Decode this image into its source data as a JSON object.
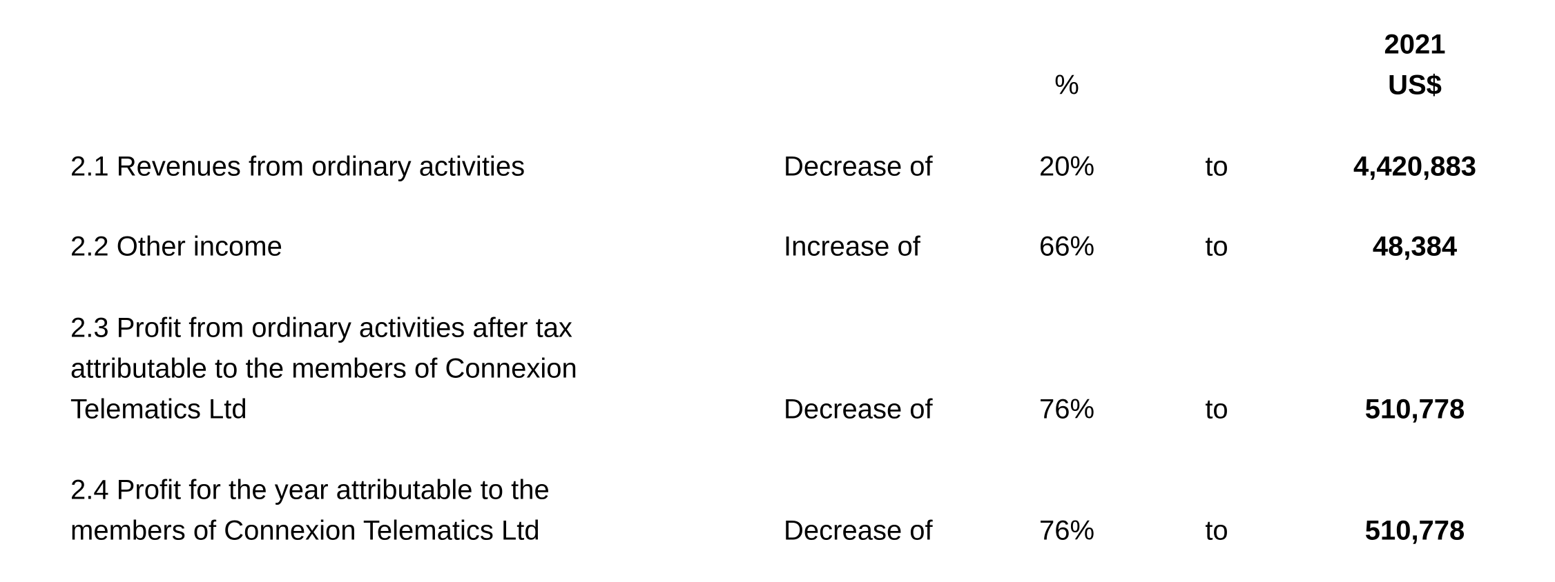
{
  "header": {
    "percent": "%",
    "year": "2021",
    "currency": "US$"
  },
  "rows": [
    {
      "label": [
        "2.1 Revenues from ordinary activities"
      ],
      "direction": "Decrease of",
      "percent": "20%",
      "to": "to",
      "amount": "4,420,883"
    },
    {
      "label": [
        "2.2 Other income"
      ],
      "direction": "Increase of",
      "percent": "66%",
      "to": "to",
      "amount": "48,384"
    },
    {
      "label": [
        "2.3 Profit from ordinary activities after tax",
        "attributable to the members of Connexion",
        "Telematics Ltd"
      ],
      "direction": "Decrease of",
      "percent": "76%",
      "to": "to",
      "amount": "510,778"
    },
    {
      "label": [
        "2.4 Profit for the year attributable to the",
        "members of Connexion Telematics Ltd"
      ],
      "direction": "Decrease of",
      "percent": "76%",
      "to": "to",
      "amount": "510,778"
    }
  ]
}
